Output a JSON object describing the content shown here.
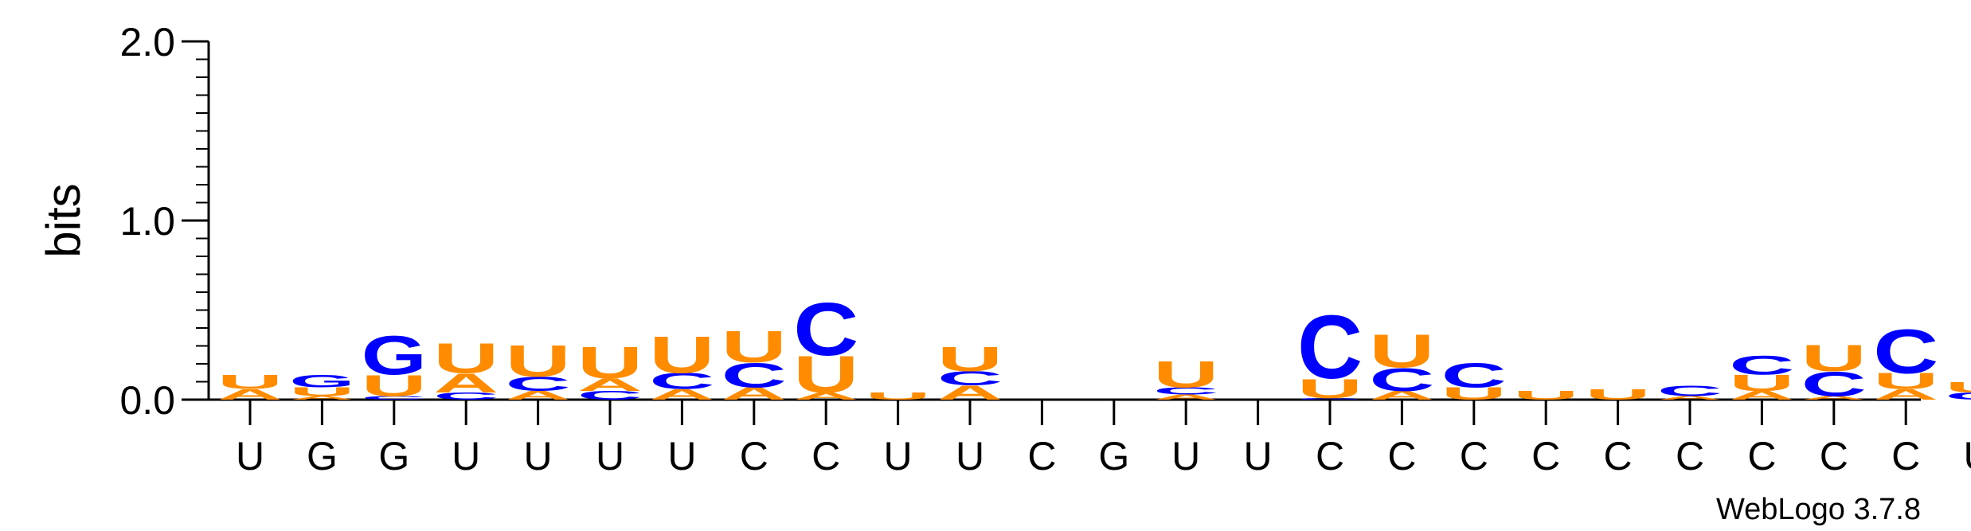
{
  "chart_data": {
    "type": "sequence-logo",
    "ylabel": "bits",
    "ylim": [
      0,
      2.0
    ],
    "yticks": [
      {
        "value": 0.0,
        "label": "0.0"
      },
      {
        "value": 1.0,
        "label": "1.0"
      },
      {
        "value": 2.0,
        "label": "2.0"
      }
    ],
    "credit": "WebLogo 3.7.8",
    "colors": {
      "A": "#ff8c00",
      "U": "#ff8c00",
      "C": "#0000ff",
      "G": "#0000ff"
    },
    "positions": [
      {
        "label": "U",
        "stack": [
          {
            "letter": "A",
            "height": 0.06
          },
          {
            "letter": "U",
            "height": 0.08
          }
        ]
      },
      {
        "label": "G",
        "stack": [
          {
            "letter": "A",
            "height": 0.02
          },
          {
            "letter": "U",
            "height": 0.05
          },
          {
            "letter": "G",
            "height": 0.07
          }
        ]
      },
      {
        "label": "G",
        "stack": [
          {
            "letter": "C",
            "height": 0.02
          },
          {
            "letter": "U",
            "height": 0.12
          },
          {
            "letter": "G",
            "height": 0.22
          }
        ]
      },
      {
        "label": "U",
        "stack": [
          {
            "letter": "C",
            "height": 0.04
          },
          {
            "letter": "A",
            "height": 0.11
          },
          {
            "letter": "U",
            "height": 0.17
          }
        ]
      },
      {
        "label": "U",
        "stack": [
          {
            "letter": "A",
            "height": 0.05
          },
          {
            "letter": "C",
            "height": 0.08
          },
          {
            "letter": "U",
            "height": 0.18
          }
        ]
      },
      {
        "label": "U",
        "stack": [
          {
            "letter": "C",
            "height": 0.05
          },
          {
            "letter": "A",
            "height": 0.07
          },
          {
            "letter": "U",
            "height": 0.18
          }
        ]
      },
      {
        "label": "U",
        "stack": [
          {
            "letter": "A",
            "height": 0.06
          },
          {
            "letter": "C",
            "height": 0.09
          },
          {
            "letter": "U",
            "height": 0.21
          }
        ]
      },
      {
        "label": "C",
        "stack": [
          {
            "letter": "A",
            "height": 0.07
          },
          {
            "letter": "C",
            "height": 0.14
          },
          {
            "letter": "U",
            "height": 0.18
          }
        ]
      },
      {
        "label": "C",
        "stack": [
          {
            "letter": "A",
            "height": 0.04
          },
          {
            "letter": "U",
            "height": 0.21
          },
          {
            "letter": "C",
            "height": 0.3
          }
        ]
      },
      {
        "label": "U",
        "stack": [
          {
            "letter": "U",
            "height": 0.04
          }
        ]
      },
      {
        "label": "U",
        "stack": [
          {
            "letter": "A",
            "height": 0.08
          },
          {
            "letter": "C",
            "height": 0.08
          },
          {
            "letter": "U",
            "height": 0.14
          }
        ]
      },
      {
        "label": "C",
        "stack": []
      },
      {
        "label": "G",
        "stack": []
      },
      {
        "label": "U",
        "stack": [
          {
            "letter": "A",
            "height": 0.03
          },
          {
            "letter": "C",
            "height": 0.04
          },
          {
            "letter": "U",
            "height": 0.15
          }
        ]
      },
      {
        "label": "U",
        "stack": []
      },
      {
        "label": "C",
        "stack": [
          {
            "letter": "G",
            "height": 0.01
          },
          {
            "letter": "U",
            "height": 0.11
          },
          {
            "letter": "C",
            "height": 0.36
          }
        ]
      },
      {
        "label": "C",
        "stack": [
          {
            "letter": "A",
            "height": 0.05
          },
          {
            "letter": "C",
            "height": 0.13
          },
          {
            "letter": "U",
            "height": 0.19
          }
        ]
      },
      {
        "label": "C",
        "stack": [
          {
            "letter": "U",
            "height": 0.07
          },
          {
            "letter": "C",
            "height": 0.14
          }
        ]
      },
      {
        "label": "C",
        "stack": [
          {
            "letter": "U",
            "height": 0.05
          }
        ]
      },
      {
        "label": "C",
        "stack": [
          {
            "letter": "U",
            "height": 0.06
          }
        ]
      },
      {
        "label": "C",
        "stack": [
          {
            "letter": "A",
            "height": 0.02
          },
          {
            "letter": "C",
            "height": 0.06
          }
        ]
      },
      {
        "label": "C",
        "stack": [
          {
            "letter": "A",
            "height": 0.05
          },
          {
            "letter": "U",
            "height": 0.09
          },
          {
            "letter": "C",
            "height": 0.11
          }
        ]
      },
      {
        "label": "C",
        "stack": [
          {
            "letter": "A",
            "height": 0.02
          },
          {
            "letter": "C",
            "height": 0.14
          },
          {
            "letter": "U",
            "height": 0.15
          }
        ]
      },
      {
        "label": "C",
        "stack": [
          {
            "letter": "A",
            "height": 0.06
          },
          {
            "letter": "U",
            "height": 0.09
          },
          {
            "letter": "C",
            "height": 0.25
          }
        ]
      },
      {
        "label": "U",
        "stack": [
          {
            "letter": "C",
            "height": 0.04
          },
          {
            "letter": "U",
            "height": 0.06
          }
        ]
      }
    ]
  }
}
